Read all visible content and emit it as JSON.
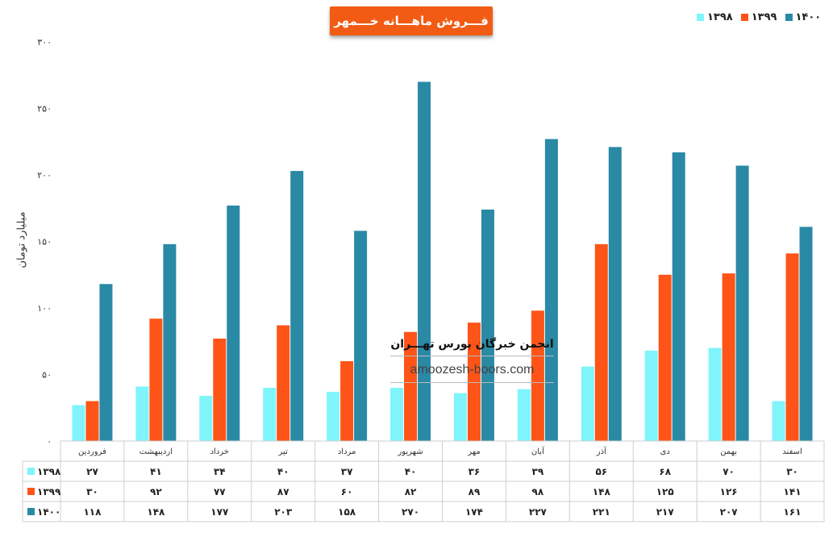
{
  "chart_data": {
    "type": "bar",
    "title": "فـــروش ماهـــانه خـــمهر",
    "ylabel": "میلیارد تومان",
    "ylim": [
      0,
      300
    ],
    "yticks": [
      0,
      50,
      100,
      150,
      200,
      250,
      300
    ],
    "ytick_labels": [
      "۰",
      "۵۰",
      "۱۰۰",
      "۱۵۰",
      "۲۰۰",
      "۲۵۰",
      "۳۰۰"
    ],
    "categories": [
      "فروردین",
      "اردیبهشت",
      "خرداد",
      "تیر",
      "مرداد",
      "شهریور",
      "مهر",
      "آبان",
      "آذر",
      "دی",
      "بهمن",
      "اسفند"
    ],
    "series": [
      {
        "name": "۱۳۹۸",
        "color": "#7ff5fb",
        "values": [
          27,
          41,
          34,
          40,
          37,
          40,
          36,
          39,
          56,
          68,
          70,
          30
        ],
        "value_labels": [
          "۲۷",
          "۴۱",
          "۳۴",
          "۴۰",
          "۳۷",
          "۴۰",
          "۳۶",
          "۳۹",
          "۵۶",
          "۶۸",
          "۷۰",
          "۳۰"
        ]
      },
      {
        "name": "۱۳۹۹",
        "color": "#fe5417",
        "values": [
          30,
          92,
          77,
          87,
          60,
          82,
          89,
          98,
          148,
          125,
          126,
          141
        ],
        "value_labels": [
          "۳۰",
          "۹۲",
          "۷۷",
          "۸۷",
          "۶۰",
          "۸۲",
          "۸۹",
          "۹۸",
          "۱۴۸",
          "۱۲۵",
          "۱۲۶",
          "۱۴۱"
        ]
      },
      {
        "name": "۱۴۰۰",
        "color": "#2a89a5",
        "values": [
          118,
          148,
          177,
          203,
          158,
          270,
          174,
          227,
          221,
          217,
          207,
          161
        ],
        "value_labels": [
          "۱۱۸",
          "۱۴۸",
          "۱۷۷",
          "۲۰۳",
          "۱۵۸",
          "۲۷۰",
          "۱۷۴",
          "۲۲۷",
          "۲۲۱",
          "۲۱۷",
          "۲۰۷",
          "۱۶۱"
        ]
      }
    ],
    "legend_position": "top-right",
    "grid": false,
    "data_table": true
  },
  "watermark": {
    "title": "انجمن خبرگان بورس تهـــران",
    "url": "amoozesh-boors.com"
  }
}
